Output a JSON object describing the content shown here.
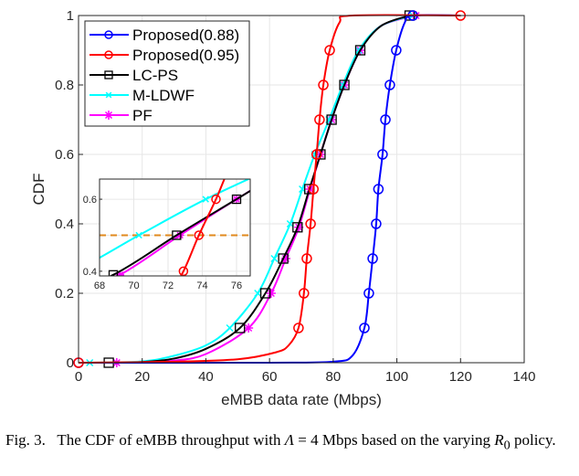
{
  "chart_data": {
    "type": "line",
    "xlabel": "eMBB data rate (Mbps)",
    "ylabel": "CDF",
    "xlim": [
      0,
      140
    ],
    "ylim": [
      0,
      1
    ],
    "xticks": [
      0,
      20,
      40,
      60,
      80,
      100,
      120,
      140
    ],
    "yticks": [
      0,
      0.2,
      0.4,
      0.6,
      0.8,
      1
    ],
    "grid": true,
    "legend_position": "top-left",
    "series": [
      {
        "name": "Proposed(0.88)",
        "color": "#0000ff",
        "marker": "circle",
        "curve": [
          [
            0,
            0
          ],
          [
            60,
            0
          ],
          [
            80,
            0.003
          ],
          [
            86,
            0.02
          ],
          [
            89.8,
            0.1
          ],
          [
            91.2,
            0.2
          ],
          [
            92.4,
            0.3
          ],
          [
            93.5,
            0.4
          ],
          [
            94.2,
            0.5
          ],
          [
            95.5,
            0.6
          ],
          [
            96.4,
            0.7
          ],
          [
            97.8,
            0.8
          ],
          [
            99.8,
            0.9
          ],
          [
            102.5,
            0.98
          ],
          [
            105,
            1
          ],
          [
            120,
            1
          ]
        ],
        "markers": [
          [
            0,
            0
          ],
          [
            89.8,
            0.1
          ],
          [
            91.2,
            0.2
          ],
          [
            92.4,
            0.3
          ],
          [
            93.5,
            0.4
          ],
          [
            94.2,
            0.5
          ],
          [
            95.5,
            0.6
          ],
          [
            96.4,
            0.7
          ],
          [
            97.8,
            0.8
          ],
          [
            99.8,
            0.9
          ],
          [
            105,
            1
          ]
        ]
      },
      {
        "name": "Proposed(0.95)",
        "color": "#ff0000",
        "marker": "circle",
        "curve": [
          [
            0,
            0
          ],
          [
            30,
            0.003
          ],
          [
            50,
            0.01
          ],
          [
            62,
            0.03
          ],
          [
            66,
            0.05
          ],
          [
            69.1,
            0.1
          ],
          [
            70.8,
            0.2
          ],
          [
            71.7,
            0.3
          ],
          [
            72.9,
            0.4
          ],
          [
            73.8,
            0.5
          ],
          [
            74.8,
            0.6
          ],
          [
            75.7,
            0.7
          ],
          [
            76.9,
            0.8
          ],
          [
            78.9,
            0.9
          ],
          [
            82,
            0.98
          ],
          [
            86,
            1
          ],
          [
            120,
            1
          ]
        ],
        "markers": [
          [
            0,
            0
          ],
          [
            69.1,
            0.1
          ],
          [
            70.8,
            0.2
          ],
          [
            71.7,
            0.3
          ],
          [
            72.9,
            0.4
          ],
          [
            73.8,
            0.5
          ],
          [
            74.8,
            0.6
          ],
          [
            75.7,
            0.7
          ],
          [
            76.9,
            0.8
          ],
          [
            78.9,
            0.9
          ],
          [
            120,
            1
          ]
        ]
      },
      {
        "name": "LC-PS",
        "color": "#000000",
        "marker": "square",
        "curve": [
          [
            9.5,
            0
          ],
          [
            20,
            0.002
          ],
          [
            30,
            0.012
          ],
          [
            40,
            0.04
          ],
          [
            50.7,
            0.1
          ],
          [
            58.7,
            0.2
          ],
          [
            64.3,
            0.3
          ],
          [
            68.8,
            0.39
          ],
          [
            72.5,
            0.5
          ],
          [
            76,
            0.6
          ],
          [
            79.5,
            0.7
          ],
          [
            83.5,
            0.8
          ],
          [
            88.5,
            0.9
          ],
          [
            95,
            0.97
          ],
          [
            104,
            1
          ]
        ],
        "markers": [
          [
            9.5,
            0
          ],
          [
            50.7,
            0.1
          ],
          [
            58.7,
            0.2
          ],
          [
            64.3,
            0.3
          ],
          [
            68.8,
            0.39
          ],
          [
            72.5,
            0.5
          ],
          [
            76,
            0.6
          ],
          [
            79.5,
            0.7
          ],
          [
            83.5,
            0.8
          ],
          [
            88.5,
            0.9
          ],
          [
            104,
            1
          ]
        ]
      },
      {
        "name": "M-LDWF",
        "color": "#00ffff",
        "marker": "x",
        "curve": [
          [
            3.5,
            0
          ],
          [
            20,
            0.004
          ],
          [
            30,
            0.02
          ],
          [
            40,
            0.05
          ],
          [
            47.5,
            0.1
          ],
          [
            56.3,
            0.2
          ],
          [
            61.5,
            0.3
          ],
          [
            66.5,
            0.4
          ],
          [
            70.3,
            0.5
          ],
          [
            74.2,
            0.6
          ],
          [
            78.7,
            0.7
          ],
          [
            83,
            0.8
          ],
          [
            88,
            0.9
          ],
          [
            95,
            0.97
          ],
          [
            105,
            1
          ]
        ],
        "markers": [
          [
            3.5,
            0
          ],
          [
            47.5,
            0.1
          ],
          [
            56.3,
            0.2
          ],
          [
            61.5,
            0.3
          ],
          [
            66.5,
            0.4
          ],
          [
            70.3,
            0.5
          ],
          [
            74.2,
            0.6
          ],
          [
            78.7,
            0.7
          ],
          [
            83,
            0.8
          ],
          [
            88,
            0.9
          ],
          [
            105,
            1
          ]
        ]
      },
      {
        "name": "PF",
        "color": "#ff00ff",
        "marker": "asterisk",
        "curve": [
          [
            12,
            0
          ],
          [
            20,
            0.001
          ],
          [
            30,
            0.006
          ],
          [
            40,
            0.025
          ],
          [
            53.4,
            0.1
          ],
          [
            60.5,
            0.2
          ],
          [
            65.1,
            0.3
          ],
          [
            69.2,
            0.39
          ],
          [
            72.7,
            0.5
          ],
          [
            76,
            0.6
          ],
          [
            79.5,
            0.7
          ],
          [
            83.5,
            0.8
          ],
          [
            88.5,
            0.9
          ],
          [
            95,
            0.97
          ],
          [
            106,
            1
          ]
        ],
        "markers": [
          [
            12,
            0
          ],
          [
            53.4,
            0.1
          ],
          [
            60.5,
            0.2
          ],
          [
            65.1,
            0.3
          ],
          [
            69.2,
            0.39
          ],
          [
            72.7,
            0.5
          ],
          [
            76,
            0.6
          ],
          [
            79.5,
            0.7
          ],
          [
            83.5,
            0.8
          ],
          [
            88.5,
            0.9
          ],
          [
            106,
            1
          ]
        ]
      }
    ],
    "inset": {
      "xlim": [
        68,
        76.8
      ],
      "ylim": [
        0.387,
        0.656
      ],
      "xticks": [
        68,
        70,
        72,
        74,
        76
      ],
      "yticks": [
        0.4,
        0.6
      ],
      "reference_line": {
        "y": 0.5,
        "color": "#e08a1e",
        "style": "dashed"
      }
    }
  },
  "caption": {
    "prefix": "Fig. 3.",
    "text_before": "The CDF of eMBB throughput with",
    "symbol": "Λ",
    "equals": "=",
    "value": "4 Mbps based on the varying",
    "variable": "R",
    "subscript": "0",
    "text_after": "policy."
  }
}
